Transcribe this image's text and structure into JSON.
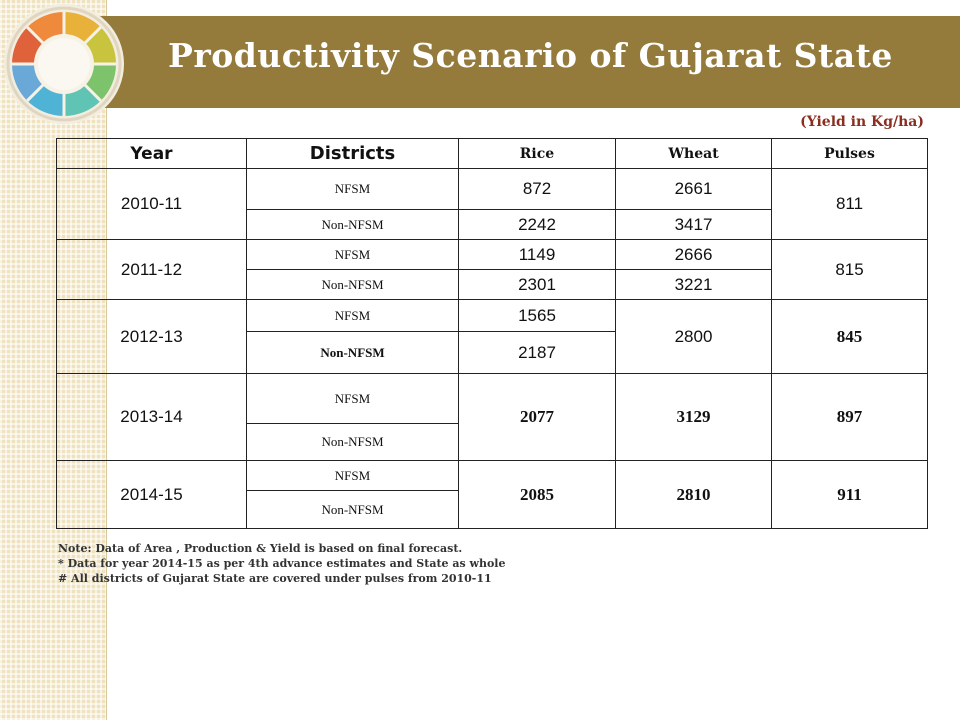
{
  "title": "Productivity Scenario of Gujarat State",
  "unit_note": "(Yield in Kg/ha)",
  "headers": {
    "year": "Year",
    "districts": "Districts",
    "rice": "Rice",
    "wheat": "Wheat",
    "pulses": "Pulses"
  },
  "rows": {
    "y2010": {
      "year": "2010-11",
      "nfsm": "NFSM",
      "non_nfsm": "Non-NFSM",
      "rice_nfsm": "872",
      "rice_non": "2242",
      "wheat_nfsm": "2661",
      "wheat_non": "3417",
      "pulses": "811"
    },
    "y2011": {
      "year": "2011-12",
      "nfsm": "NFSM",
      "non_nfsm": "Non-NFSM",
      "rice_nfsm": "1149",
      "rice_non": "2301",
      "wheat_nfsm": "2666",
      "wheat_non": "3221",
      "pulses": "815"
    },
    "y2012": {
      "year": "2012-13",
      "nfsm": "NFSM",
      "non_nfsm": "Non-NFSM",
      "rice_nfsm": "1565",
      "rice_non": "2187",
      "wheat": "2800",
      "pulses": "845"
    },
    "y2013": {
      "year": "2013-14",
      "nfsm": "NFSM",
      "non_nfsm": "Non-NFSM",
      "rice": "2077",
      "wheat": "3129",
      "pulses": "897"
    },
    "y2014": {
      "year": "2014-15",
      "nfsm": "NFSM",
      "non_nfsm": "Non-NFSM",
      "rice": "2085",
      "wheat": "2810",
      "pulses": "911"
    }
  },
  "notes": [
    "Note: Data of Area , Production & Yield is based on final forecast.",
    "* Data for year 2014-15 as per 4th  advance estimates and State as whole",
    "#  All districts of Gujarat State are covered under pulses from 2010-11"
  ],
  "colors": {
    "title_bar": "#947b3b",
    "side_strip": "#efe3bf",
    "unit_note": "#8b2e1f"
  },
  "logo_icon": "color-wheel-icon"
}
